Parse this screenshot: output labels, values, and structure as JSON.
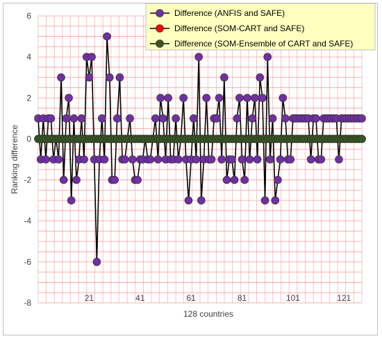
{
  "chart_data": {
    "type": "line",
    "xlabel": "128 countries",
    "ylabel": "Ranking difference",
    "ylim": [
      -8,
      6
    ],
    "yticks": [
      -8,
      -6,
      -4,
      -2,
      0,
      2,
      4,
      6
    ],
    "xticks": [
      21,
      41,
      61,
      81,
      101,
      121
    ],
    "grid": true,
    "legend": "top-right",
    "colors": {
      "gridline": "#ff9999",
      "frame_border": "#bfbfbf",
      "legend_bg": "#ffffc0",
      "line": "#000000"
    },
    "series": [
      {
        "name": "Difference (ANFIS and SAFE)",
        "color": "#7030a0",
        "x": [
          1,
          2,
          3,
          4,
          5,
          6,
          7,
          8,
          9,
          10,
          11,
          12,
          13,
          14,
          15,
          16,
          17,
          18,
          19,
          20,
          21,
          22,
          23,
          24,
          25,
          26,
          27,
          28,
          29,
          30,
          31,
          32,
          33,
          34,
          35,
          36,
          37,
          38,
          39,
          40,
          41,
          42,
          43,
          44,
          45,
          46,
          47,
          48,
          49,
          50,
          51,
          52,
          53,
          54,
          55,
          56,
          57,
          58,
          59,
          60,
          61,
          62,
          63,
          64,
          65,
          66,
          67,
          68,
          69,
          70,
          71,
          72,
          73,
          74,
          75,
          76,
          77,
          78,
          79,
          80,
          81,
          82,
          83,
          84,
          85,
          86,
          87,
          88,
          89,
          90,
          91,
          92,
          93,
          94,
          95,
          96,
          97,
          98,
          99,
          100,
          101,
          102,
          103,
          104,
          105,
          106,
          107,
          108,
          109,
          110,
          111,
          112,
          113,
          114,
          115,
          116,
          117,
          118,
          119,
          120,
          121,
          122,
          123,
          124,
          125,
          126,
          127,
          128
        ],
        "values": [
          1,
          -1,
          1,
          -1,
          1,
          1,
          -1,
          0,
          -1,
          3,
          -2,
          1,
          2,
          -3,
          1,
          -2,
          -1,
          1,
          -1,
          4,
          3,
          4,
          -1,
          -6,
          -1,
          1,
          -1,
          5,
          3,
          -2,
          -2,
          1,
          3,
          -1,
          -1,
          0,
          1,
          -1,
          -2,
          -2,
          -1,
          -1,
          0,
          -1,
          -1,
          0,
          1,
          -1,
          2,
          1,
          -1,
          2,
          -1,
          -1,
          1,
          -1,
          0,
          2,
          -1,
          -3,
          -1,
          1,
          -1,
          4,
          -3,
          -1,
          2,
          -1,
          -1,
          1,
          1,
          2,
          -1,
          3,
          -2,
          -1,
          -1,
          -2,
          1,
          2,
          -1,
          -2,
          2,
          -1,
          1,
          2,
          -1,
          3,
          2,
          -3,
          4,
          -1,
          1,
          -3,
          -2,
          -1,
          2,
          1,
          -1,
          -1,
          1,
          1,
          1,
          1,
          1,
          1,
          1,
          -1,
          1,
          1,
          -1,
          -1,
          1,
          1,
          1,
          1,
          1,
          1,
          -1,
          1,
          1,
          1,
          1,
          1,
          1,
          1,
          1,
          1
        ],
        "values_note_visible_only": true
      },
      {
        "name": "Difference (SOM-CART and SAFE)",
        "color": "#ff0000",
        "x": [
          1,
          2,
          3,
          4,
          5,
          6,
          7,
          8,
          9,
          10,
          11,
          12,
          13,
          14,
          15,
          16,
          17,
          18,
          19,
          20,
          21,
          22,
          23,
          24,
          25,
          26,
          27,
          28,
          29,
          30,
          31,
          32,
          33,
          34,
          35,
          36,
          37,
          38,
          39,
          40,
          41,
          42,
          43,
          44,
          45,
          46,
          47,
          48,
          49,
          50,
          51,
          52,
          53,
          54,
          55,
          56,
          57,
          58,
          59,
          60,
          61,
          62,
          63,
          64,
          65,
          66,
          67,
          68,
          69,
          70,
          71,
          72,
          73,
          74,
          75,
          76,
          77,
          78,
          79,
          80,
          81,
          82,
          83,
          84,
          85,
          86,
          87,
          88,
          89,
          90,
          91,
          92,
          93,
          94,
          95,
          96,
          97,
          98,
          99,
          100,
          101,
          102,
          103,
          104,
          105,
          106,
          107,
          108,
          109,
          110,
          111,
          112,
          113,
          114,
          115,
          116,
          117,
          118,
          119,
          120,
          121,
          122,
          123,
          124,
          125,
          126,
          127,
          128
        ],
        "values": [
          0,
          0,
          0,
          0,
          0,
          0,
          0,
          0,
          0,
          0,
          0,
          0,
          0,
          0,
          0,
          0,
          0,
          0,
          0,
          0,
          0,
          0,
          0,
          0,
          0,
          0,
          0,
          0,
          0,
          0,
          0,
          0,
          0,
          0,
          0,
          0,
          0,
          0,
          0,
          0,
          0,
          0,
          0,
          0,
          0,
          0,
          0,
          0,
          0,
          0,
          0,
          0,
          0,
          0,
          0,
          0,
          0,
          0,
          0,
          0,
          0,
          0,
          0,
          0,
          0,
          0,
          0,
          0,
          0,
          0,
          0,
          0,
          0,
          0,
          0,
          0,
          0,
          0,
          0,
          0,
          0,
          0,
          0,
          0,
          0,
          0,
          0,
          0,
          0,
          0,
          0,
          0,
          0,
          0,
          0,
          0,
          0,
          0,
          0,
          0,
          0,
          0,
          0,
          0,
          0,
          0,
          0,
          0,
          0,
          0,
          0,
          0,
          0,
          0,
          0,
          0,
          0,
          0,
          0,
          0,
          0,
          0,
          0,
          0,
          0,
          0,
          0,
          0
        ]
      },
      {
        "name": "Difference (SOM-Ensemble of CART and SAFE)",
        "color": "#375623",
        "x": [
          1,
          2,
          3,
          4,
          5,
          6,
          7,
          8,
          9,
          10,
          11,
          12,
          13,
          14,
          15,
          16,
          17,
          18,
          19,
          20,
          21,
          22,
          23,
          24,
          25,
          26,
          27,
          28,
          29,
          30,
          31,
          32,
          33,
          34,
          35,
          36,
          37,
          38,
          39,
          40,
          41,
          42,
          43,
          44,
          45,
          46,
          47,
          48,
          49,
          50,
          51,
          52,
          53,
          54,
          55,
          56,
          57,
          58,
          59,
          60,
          61,
          62,
          63,
          64,
          65,
          66,
          67,
          68,
          69,
          70,
          71,
          72,
          73,
          74,
          75,
          76,
          77,
          78,
          79,
          80,
          81,
          82,
          83,
          84,
          85,
          86,
          87,
          88,
          89,
          90,
          91,
          92,
          93,
          94,
          95,
          96,
          97,
          98,
          99,
          100,
          101,
          102,
          103,
          104,
          105,
          106,
          107,
          108,
          109,
          110,
          111,
          112,
          113,
          114,
          115,
          116,
          117,
          118,
          119,
          120,
          121,
          122,
          123,
          124,
          125,
          126,
          127,
          128
        ],
        "values": [
          0,
          0,
          0,
          0,
          0,
          0,
          0,
          0,
          0,
          0,
          0,
          0,
          0,
          0,
          0,
          0,
          0,
          0,
          0,
          0,
          0,
          0,
          0,
          0,
          0,
          0,
          0,
          0,
          0,
          0,
          0,
          0,
          0,
          0,
          0,
          0,
          0,
          0,
          0,
          0,
          0,
          0,
          0,
          0,
          0,
          0,
          0,
          0,
          0,
          0,
          0,
          0,
          0,
          0,
          0,
          0,
          0,
          0,
          0,
          0,
          0,
          0,
          0,
          0,
          0,
          0,
          0,
          0,
          0,
          0,
          0,
          0,
          0,
          0,
          0,
          0,
          0,
          0,
          0,
          0,
          0,
          0,
          0,
          0,
          0,
          0,
          0,
          0,
          0,
          0,
          0,
          0,
          0,
          0,
          0,
          0,
          0,
          0,
          0,
          0,
          0,
          0,
          0,
          0,
          0,
          0,
          0,
          0,
          0,
          0,
          0,
          0,
          0,
          0,
          0,
          0,
          0,
          0,
          0,
          0,
          0,
          0,
          0,
          0,
          0,
          0,
          0,
          0
        ]
      }
    ]
  }
}
